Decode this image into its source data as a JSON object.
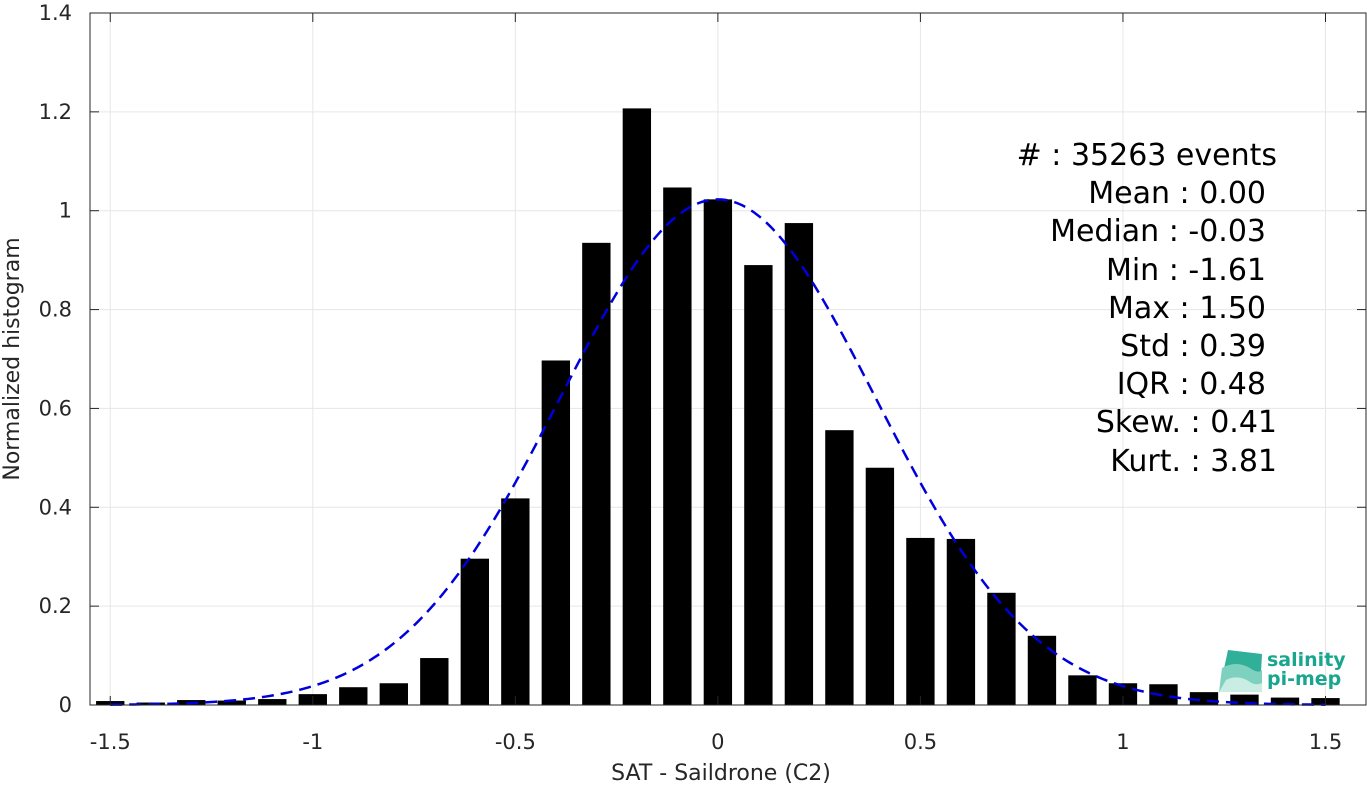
{
  "chart_data": {
    "type": "bar",
    "xlabel": "SAT - Saildrone (C2)",
    "ylabel": "Normalized histogram",
    "xlim": [
      -1.55,
      1.6
    ],
    "ylim": [
      0,
      1.4
    ],
    "xticks": [
      -1.5,
      -1,
      -0.5,
      0,
      0.5,
      1,
      1.5
    ],
    "xtick_labels": [
      "-1.5",
      "-1",
      "-0.5",
      "0",
      "0.5",
      "1",
      "1.5"
    ],
    "yticks": [
      0,
      0.2,
      0.4,
      0.6,
      0.8,
      1,
      1.2,
      1.4
    ],
    "ytick_labels": [
      "0",
      "0.2",
      "0.4",
      "0.6",
      "0.8",
      "1",
      "1.2",
      "1.4"
    ],
    "grid": true,
    "bar_color": "#000000",
    "bar_width": 0.07,
    "bins_x": [
      -1.5,
      -1.4,
      -1.3,
      -1.2,
      -1.1,
      -1.0,
      -0.9,
      -0.8,
      -0.7,
      -0.6,
      -0.5,
      -0.4,
      -0.3,
      -0.2,
      -0.1,
      0.0,
      0.1,
      0.2,
      0.3,
      0.4,
      0.5,
      0.6,
      0.7,
      0.8,
      0.9,
      1.0,
      1.1,
      1.2,
      1.3,
      1.4,
      1.5
    ],
    "values": [
      0.008,
      0.005,
      0.01,
      0.009,
      0.012,
      0.022,
      0.036,
      0.044,
      0.095,
      0.296,
      0.418,
      0.697,
      0.935,
      1.207,
      1.047,
      1.023,
      0.89,
      0.975,
      0.556,
      0.48,
      0.338,
      0.336,
      0.227,
      0.14,
      0.06,
      0.044,
      0.042,
      0.026,
      0.021,
      0.015,
      0.014
    ],
    "fit": {
      "name": "",
      "style": "dashed",
      "color": "#0000dd",
      "mean": 0.0,
      "std": 0.39,
      "peak": 1.023
    },
    "stats": [
      {
        "label": "#  : 35263 events"
      },
      {
        "label": "Mean : 0.00"
      },
      {
        "label": "Median : -0.03"
      },
      {
        "label": "Min : -1.61"
      },
      {
        "label": "Max : 1.50"
      },
      {
        "label": "Std : 0.39"
      },
      {
        "label": "IQR : 0.48"
      },
      {
        "label": "Skew. : 0.41"
      },
      {
        "label": "Kurt. : 3.81"
      }
    ],
    "logo": {
      "line1": "salinity",
      "line2": "pi-mep",
      "color": "#1aa68e"
    }
  }
}
